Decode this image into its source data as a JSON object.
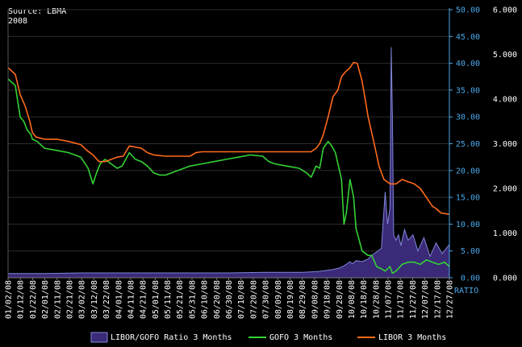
{
  "chart_data": {
    "type": "line",
    "source": "Source: LBMA",
    "year": "2008",
    "x_tick_labels": [
      "01/02/08",
      "01/12/08",
      "01/22/08",
      "02/01/08",
      "02/11/08",
      "02/21/08",
      "03/02/08",
      "03/12/08",
      "03/22/08",
      "04/01/08",
      "04/11/08",
      "04/21/08",
      "05/01/08",
      "05/11/08",
      "05/21/08",
      "05/31/08",
      "06/10/08",
      "06/20/08",
      "06/30/08",
      "07/10/08",
      "07/20/08",
      "07/30/08",
      "08/09/08",
      "08/19/08",
      "08/29/08",
      "09/08/08",
      "09/18/08",
      "09/28/08",
      "10/08/08",
      "10/18/08",
      "10/28/08",
      "11/07/08",
      "11/17/08",
      "11/27/08",
      "12/07/08",
      "12/17/08",
      "12/27/08"
    ],
    "ratio_axis": {
      "label": "RATIO",
      "ticks": [
        "0.00",
        "5.00",
        "10.00",
        "15.00",
        "20.00",
        "25.00",
        "30.00",
        "35.00",
        "40.00",
        "45.00",
        "50.00"
      ],
      "ylim": [
        0,
        50
      ],
      "color": "#4aa8e8"
    },
    "rate_axis": {
      "ticks": [
        "0.000",
        "1.000",
        "2.000",
        "3.000",
        "4.000",
        "5.000",
        "6.000"
      ],
      "ylim": [
        0,
        6
      ]
    },
    "series": [
      {
        "name": "LIBOR/GOFO Ratio 3 Months",
        "axis": "ratio",
        "style": "area",
        "color": "#7f86d8",
        "fill": "#3a2a78",
        "x": [
          "2008-01-02",
          "2008-02-01",
          "2008-03-02",
          "2008-04-01",
          "2008-05-01",
          "2008-06-01",
          "2008-07-01",
          "2008-08-01",
          "2008-09-01",
          "2008-09-15",
          "2008-09-25",
          "2008-10-01",
          "2008-10-05",
          "2008-10-10",
          "2008-10-12",
          "2008-10-15",
          "2008-10-20",
          "2008-10-25",
          "2008-10-28",
          "2008-11-01",
          "2008-11-05",
          "2008-11-08",
          "2008-11-10",
          "2008-11-12",
          "2008-11-13",
          "2008-11-14",
          "2008-11-15",
          "2008-11-17",
          "2008-11-19",
          "2008-11-21",
          "2008-11-24",
          "2008-11-27",
          "2008-12-01",
          "2008-12-05",
          "2008-12-10",
          "2008-12-15",
          "2008-12-20",
          "2008-12-25",
          "2008-12-31"
        ],
        "y": [
          0.8,
          0.8,
          0.9,
          0.9,
          0.9,
          0.9,
          0.9,
          1.0,
          1.0,
          1.2,
          1.5,
          1.8,
          2.2,
          3.0,
          2.6,
          3.2,
          3.0,
          3.5,
          4.2,
          4.8,
          5.5,
          16.0,
          10.0,
          13.0,
          43.0,
          30.0,
          8.0,
          7.0,
          8.0,
          6.0,
          9.0,
          7.0,
          8.0,
          5.0,
          7.5,
          4.0,
          6.5,
          4.5,
          6.2
        ]
      },
      {
        "name": "GOFO 3 Months",
        "axis": "rate",
        "style": "line",
        "color": "#33d233",
        "x": [
          "2008-01-02",
          "2008-01-08",
          "2008-01-12",
          "2008-01-15",
          "2008-01-18",
          "2008-01-21",
          "2008-01-22",
          "2008-01-26",
          "2008-02-01",
          "2008-02-11",
          "2008-02-21",
          "2008-03-02",
          "2008-03-08",
          "2008-03-12",
          "2008-03-15",
          "2008-03-18",
          "2008-03-22",
          "2008-03-27",
          "2008-04-01",
          "2008-04-05",
          "2008-04-11",
          "2008-04-16",
          "2008-04-21",
          "2008-04-26",
          "2008-05-01",
          "2008-05-06",
          "2008-05-11",
          "2008-05-21",
          "2008-05-31",
          "2008-06-10",
          "2008-06-20",
          "2008-06-30",
          "2008-07-10",
          "2008-07-20",
          "2008-07-30",
          "2008-08-04",
          "2008-08-09",
          "2008-08-19",
          "2008-08-29",
          "2008-09-04",
          "2008-09-08",
          "2008-09-12",
          "2008-09-15",
          "2008-09-18",
          "2008-09-22",
          "2008-09-25",
          "2008-09-28",
          "2008-10-03",
          "2008-10-05",
          "2008-10-07",
          "2008-10-10",
          "2008-10-13",
          "2008-10-15",
          "2008-10-20",
          "2008-10-25",
          "2008-10-28",
          "2008-11-01",
          "2008-11-05",
          "2008-11-08",
          "2008-11-12",
          "2008-11-14",
          "2008-11-17",
          "2008-11-22",
          "2008-11-27",
          "2008-12-02",
          "2008-12-07",
          "2008-12-12",
          "2008-12-17",
          "2008-12-22",
          "2008-12-27",
          "2008-12-31"
        ],
        "y": [
          4.45,
          4.3,
          3.6,
          3.5,
          3.3,
          3.2,
          3.1,
          3.05,
          2.9,
          2.85,
          2.8,
          2.7,
          2.45,
          2.1,
          2.35,
          2.55,
          2.65,
          2.55,
          2.45,
          2.5,
          2.8,
          2.65,
          2.6,
          2.5,
          2.35,
          2.3,
          2.3,
          2.4,
          2.5,
          2.55,
          2.6,
          2.65,
          2.7,
          2.75,
          2.72,
          2.6,
          2.55,
          2.5,
          2.45,
          2.35,
          2.25,
          2.5,
          2.45,
          2.9,
          3.05,
          2.95,
          2.8,
          2.2,
          1.2,
          1.45,
          2.2,
          1.8,
          1.1,
          0.6,
          0.5,
          0.5,
          0.25,
          0.2,
          0.15,
          0.25,
          0.1,
          0.15,
          0.3,
          0.35,
          0.35,
          0.3,
          0.4,
          0.35,
          0.3,
          0.35,
          0.25
        ]
      },
      {
        "name": "LIBOR 3 Months",
        "axis": "rate",
        "style": "line",
        "color": "#ff6a1a",
        "x": [
          "2008-01-02",
          "2008-01-08",
          "2008-01-12",
          "2008-01-16",
          "2008-01-20",
          "2008-01-22",
          "2008-01-25",
          "2008-02-01",
          "2008-02-11",
          "2008-02-21",
          "2008-03-02",
          "2008-03-07",
          "2008-03-12",
          "2008-03-17",
          "2008-03-22",
          "2008-04-01",
          "2008-04-06",
          "2008-04-11",
          "2008-04-21",
          "2008-04-26",
          "2008-05-01",
          "2008-05-11",
          "2008-05-21",
          "2008-05-31",
          "2008-06-05",
          "2008-06-10",
          "2008-06-20",
          "2008-06-30",
          "2008-07-10",
          "2008-07-20",
          "2008-07-30",
          "2008-08-09",
          "2008-08-19",
          "2008-08-29",
          "2008-09-08",
          "2008-09-12",
          "2008-09-15",
          "2008-09-18",
          "2008-09-22",
          "2008-09-26",
          "2008-09-30",
          "2008-10-03",
          "2008-10-06",
          "2008-10-10",
          "2008-10-13",
          "2008-10-16",
          "2008-10-20",
          "2008-10-25",
          "2008-10-30",
          "2008-11-03",
          "2008-11-07",
          "2008-11-12",
          "2008-11-17",
          "2008-11-22",
          "2008-11-27",
          "2008-12-02",
          "2008-12-07",
          "2008-12-12",
          "2008-12-17",
          "2008-12-20",
          "2008-12-24",
          "2008-12-31"
        ],
        "y": [
          4.7,
          4.55,
          4.1,
          3.85,
          3.5,
          3.25,
          3.15,
          3.1,
          3.1,
          3.05,
          2.98,
          2.85,
          2.75,
          2.6,
          2.6,
          2.7,
          2.72,
          2.95,
          2.9,
          2.8,
          2.75,
          2.72,
          2.72,
          2.72,
          2.8,
          2.82,
          2.82,
          2.82,
          2.82,
          2.82,
          2.82,
          2.82,
          2.82,
          2.82,
          2.82,
          2.9,
          3.0,
          3.2,
          3.6,
          4.05,
          4.2,
          4.5,
          4.6,
          4.7,
          4.82,
          4.8,
          4.4,
          3.6,
          3.0,
          2.5,
          2.2,
          2.1,
          2.1,
          2.2,
          2.15,
          2.1,
          2.0,
          1.8,
          1.6,
          1.55,
          1.45,
          1.42
        ]
      }
    ],
    "legend": {
      "position": "bottom"
    }
  }
}
